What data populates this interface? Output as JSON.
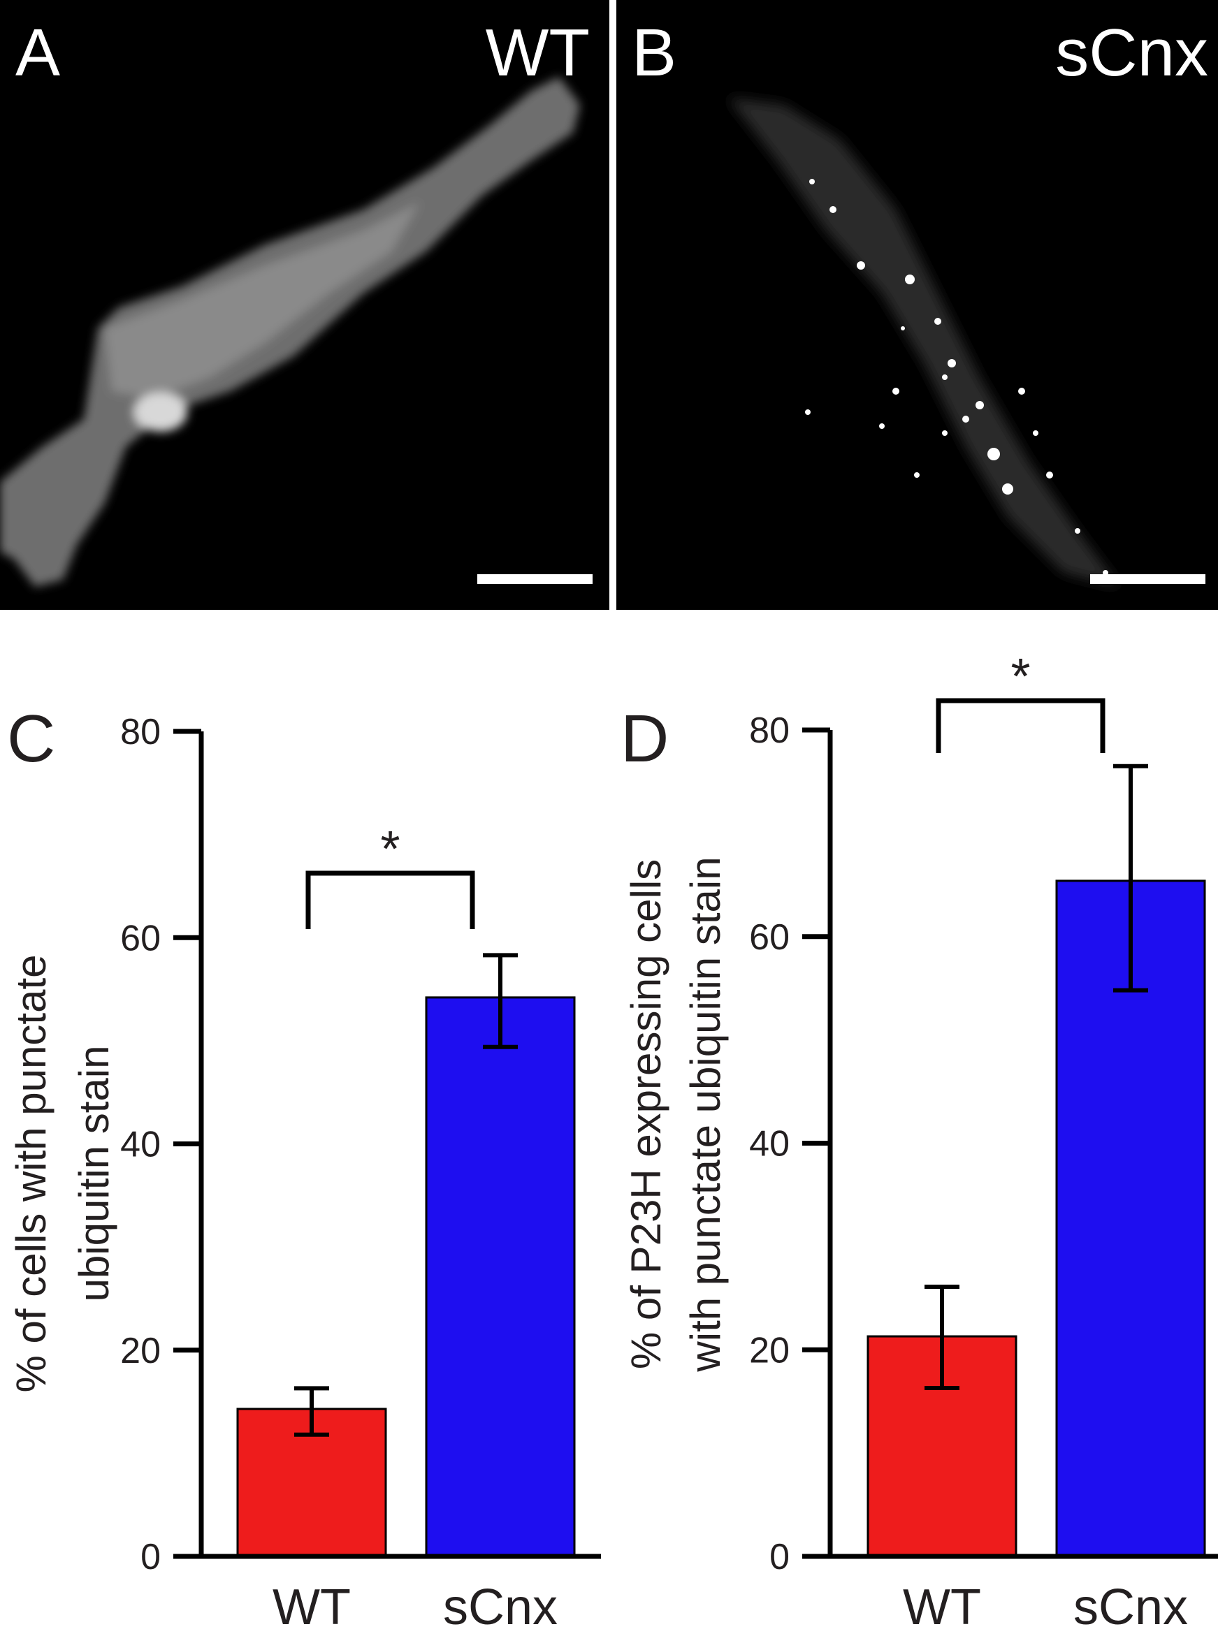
{
  "panel_a": {
    "letter": "A",
    "condition": "WT"
  },
  "panel_b": {
    "letter": "B",
    "condition": "sCnx"
  },
  "colors": {
    "wt": "#ee1c1c",
    "scnx": "#1e0ef0",
    "axis": "#000000",
    "text": "#231f20"
  },
  "chart_data": [
    {
      "type": "bar",
      "panel": "C",
      "categories": [
        "WT",
        "sCnx"
      ],
      "values": [
        14.3,
        54.2
      ],
      "errors_low": [
        11.8,
        49.4
      ],
      "errors_high": [
        16.3,
        58.3
      ],
      "ylabel_lines": [
        "% of cells with punctate",
        "ubiquitin stain"
      ],
      "ylim": [
        0,
        80
      ],
      "yticks": [
        0,
        20,
        40,
        60,
        80
      ],
      "significance": "*",
      "grid": false
    },
    {
      "type": "bar",
      "panel": "D",
      "categories": [
        "WT",
        "sCnx"
      ],
      "values": [
        21.3,
        65.4
      ],
      "errors_low": [
        16.3,
        54.8
      ],
      "errors_high": [
        26.1,
        76.5
      ],
      "ylabel_lines": [
        "% of P23H expressing cells",
        "with punctate ubiquitin stain"
      ],
      "ylim": [
        0,
        80
      ],
      "yticks": [
        0,
        20,
        40,
        60,
        80
      ],
      "significance": "*",
      "grid": false
    }
  ]
}
